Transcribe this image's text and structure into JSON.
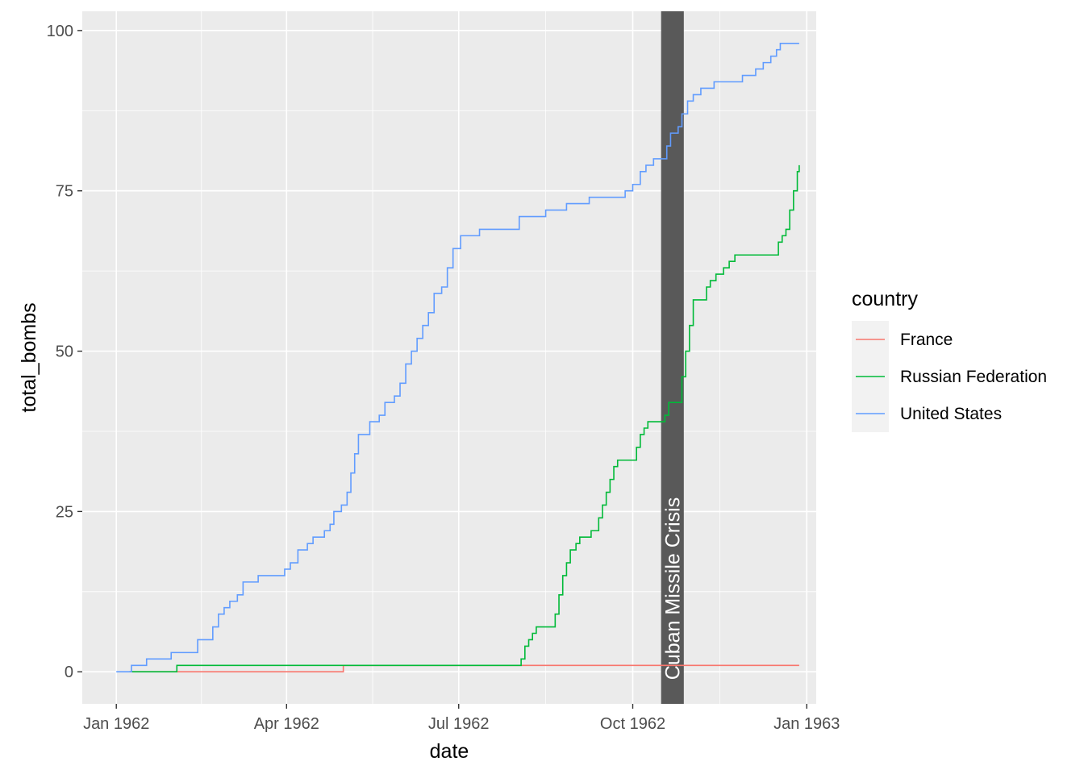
{
  "chart_data": {
    "type": "line",
    "step": true,
    "x_type": "date",
    "xlabel": "date",
    "ylabel": "total_bombs",
    "xlim": [
      "1961-12-14",
      "1963-01-06"
    ],
    "ylim": [
      -5,
      103
    ],
    "x_ticks": [
      {
        "date": "1962-01-01",
        "label": "Jan 1962"
      },
      {
        "date": "1962-04-01",
        "label": "Apr 1962"
      },
      {
        "date": "1962-07-01",
        "label": "Jul 1962"
      },
      {
        "date": "1962-10-01",
        "label": "Oct 1962"
      },
      {
        "date": "1963-01-01",
        "label": "Jan 1963"
      }
    ],
    "y_ticks": [
      0,
      25,
      50,
      75,
      100
    ],
    "grid": true,
    "background": "#ebebeb",
    "legend": {
      "title": "country",
      "position": "right"
    },
    "annotation": {
      "label": "Cuban Missile Crisis",
      "x_start": "1962-10-16",
      "x_end": "1962-10-28",
      "color": "#595959"
    },
    "series": [
      {
        "name": "France",
        "color": "#F8766D",
        "points": [
          [
            "1962-01-08",
            0
          ],
          [
            "1962-05-01",
            0
          ],
          [
            "1962-05-01",
            1
          ],
          [
            "1962-12-28",
            1
          ]
        ]
      },
      {
        "name": "Russian Federation",
        "color": "#00BA38",
        "points": [
          [
            "1962-01-08",
            0
          ],
          [
            "1962-02-01",
            0
          ],
          [
            "1962-02-02",
            1
          ],
          [
            "1962-08-01",
            1
          ],
          [
            "1962-08-03",
            2
          ],
          [
            "1962-08-05",
            4
          ],
          [
            "1962-08-07",
            5
          ],
          [
            "1962-08-09",
            6
          ],
          [
            "1962-08-11",
            7
          ],
          [
            "1962-08-19",
            7
          ],
          [
            "1962-08-21",
            9
          ],
          [
            "1962-08-23",
            12
          ],
          [
            "1962-08-25",
            15
          ],
          [
            "1962-08-27",
            17
          ],
          [
            "1962-08-29",
            19
          ],
          [
            "1962-09-01",
            20
          ],
          [
            "1962-09-03",
            21
          ],
          [
            "1962-09-08",
            21
          ],
          [
            "1962-09-09",
            22
          ],
          [
            "1962-09-11",
            22
          ],
          [
            "1962-09-13",
            24
          ],
          [
            "1962-09-15",
            26
          ],
          [
            "1962-09-17",
            28
          ],
          [
            "1962-09-19",
            30
          ],
          [
            "1962-09-21",
            32
          ],
          [
            "1962-09-23",
            33
          ],
          [
            "1962-10-01",
            33
          ],
          [
            "1962-10-03",
            35
          ],
          [
            "1962-10-05",
            37
          ],
          [
            "1962-10-07",
            38
          ],
          [
            "1962-10-09",
            39
          ],
          [
            "1962-10-15",
            39
          ],
          [
            "1962-10-18",
            40
          ],
          [
            "1962-10-20",
            42
          ],
          [
            "1962-10-25",
            42
          ],
          [
            "1962-10-27",
            46
          ],
          [
            "1962-10-29",
            50
          ],
          [
            "1962-10-31",
            54
          ],
          [
            "1962-11-02",
            58
          ],
          [
            "1962-11-07",
            58
          ],
          [
            "1962-11-09",
            60
          ],
          [
            "1962-11-11",
            61
          ],
          [
            "1962-11-14",
            62
          ],
          [
            "1962-11-18",
            63
          ],
          [
            "1962-11-21",
            64
          ],
          [
            "1962-11-24",
            65
          ],
          [
            "1962-12-15",
            65
          ],
          [
            "1962-12-17",
            67
          ],
          [
            "1962-12-19",
            68
          ],
          [
            "1962-12-21",
            69
          ],
          [
            "1962-12-23",
            72
          ],
          [
            "1962-12-25",
            75
          ],
          [
            "1962-12-27",
            78
          ],
          [
            "1962-12-28",
            79
          ]
        ]
      },
      {
        "name": "United States",
        "color": "#619CFF",
        "points": [
          [
            "1962-01-01",
            0
          ],
          [
            "1962-01-08",
            0
          ],
          [
            "1962-01-09",
            1
          ],
          [
            "1962-01-16",
            1
          ],
          [
            "1962-01-17",
            2
          ],
          [
            "1962-01-29",
            2
          ],
          [
            "1962-01-30",
            3
          ],
          [
            "1962-02-11",
            3
          ],
          [
            "1962-02-13",
            5
          ],
          [
            "1962-02-19",
            5
          ],
          [
            "1962-02-21",
            7
          ],
          [
            "1962-02-24",
            9
          ],
          [
            "1962-02-27",
            10
          ],
          [
            "1962-03-02",
            11
          ],
          [
            "1962-03-06",
            12
          ],
          [
            "1962-03-09",
            14
          ],
          [
            "1962-03-16",
            14
          ],
          [
            "1962-03-17",
            15
          ],
          [
            "1962-03-28",
            15
          ],
          [
            "1962-03-31",
            16
          ],
          [
            "1962-04-03",
            17
          ],
          [
            "1962-04-07",
            19
          ],
          [
            "1962-04-12",
            20
          ],
          [
            "1962-04-15",
            21
          ],
          [
            "1962-04-21",
            22
          ],
          [
            "1962-04-24",
            23
          ],
          [
            "1962-04-26",
            25
          ],
          [
            "1962-04-30",
            26
          ],
          [
            "1962-05-03",
            28
          ],
          [
            "1962-05-05",
            31
          ],
          [
            "1962-05-07",
            34
          ],
          [
            "1962-05-09",
            37
          ],
          [
            "1962-05-13",
            37
          ],
          [
            "1962-05-15",
            39
          ],
          [
            "1962-05-20",
            40
          ],
          [
            "1962-05-23",
            42
          ],
          [
            "1962-05-28",
            43
          ],
          [
            "1962-05-31",
            45
          ],
          [
            "1962-06-03",
            48
          ],
          [
            "1962-06-06",
            50
          ],
          [
            "1962-06-09",
            52
          ],
          [
            "1962-06-12",
            54
          ],
          [
            "1962-06-15",
            56
          ],
          [
            "1962-06-18",
            59
          ],
          [
            "1962-06-22",
            60
          ],
          [
            "1962-06-25",
            63
          ],
          [
            "1962-06-28",
            66
          ],
          [
            "1962-07-02",
            68
          ],
          [
            "1962-07-10",
            68
          ],
          [
            "1962-07-12",
            69
          ],
          [
            "1962-07-31",
            69
          ],
          [
            "1962-08-02",
            71
          ],
          [
            "1962-08-14",
            71
          ],
          [
            "1962-08-16",
            72
          ],
          [
            "1962-08-26",
            72
          ],
          [
            "1962-08-27",
            73
          ],
          [
            "1962-09-05",
            73
          ],
          [
            "1962-09-08",
            74
          ],
          [
            "1962-09-24",
            74
          ],
          [
            "1962-09-27",
            75
          ],
          [
            "1962-10-01",
            76
          ],
          [
            "1962-10-05",
            78
          ],
          [
            "1962-10-08",
            79
          ],
          [
            "1962-10-12",
            80
          ],
          [
            "1962-10-17",
            80
          ],
          [
            "1962-10-19",
            82
          ],
          [
            "1962-10-21",
            84
          ],
          [
            "1962-10-25",
            85
          ],
          [
            "1962-10-27",
            87
          ],
          [
            "1962-10-30",
            89
          ],
          [
            "1962-11-02",
            90
          ],
          [
            "1962-11-06",
            91
          ],
          [
            "1962-11-13",
            92
          ],
          [
            "1962-11-28",
            93
          ],
          [
            "1962-12-05",
            94
          ],
          [
            "1962-12-09",
            95
          ],
          [
            "1962-12-13",
            96
          ],
          [
            "1962-12-16",
            97
          ],
          [
            "1962-12-18",
            98
          ],
          [
            "1962-12-28",
            98
          ]
        ]
      }
    ]
  }
}
